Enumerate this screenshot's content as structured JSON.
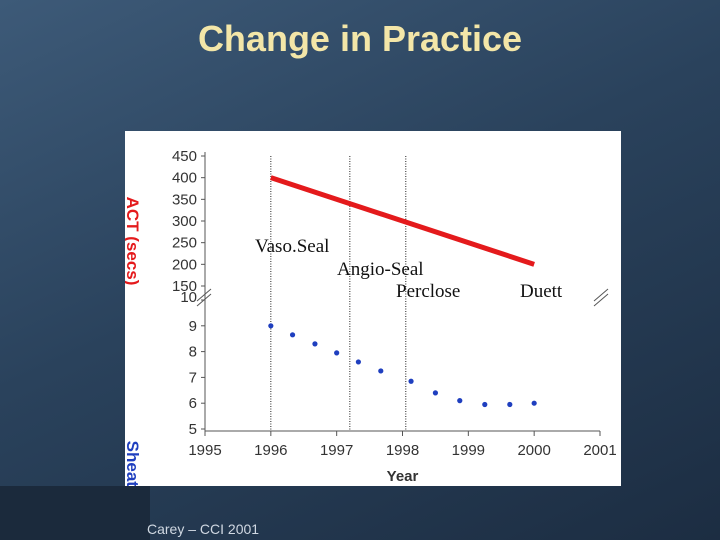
{
  "slide": {
    "title": "Change in Practice",
    "footer": "Carey – CCI 2001"
  },
  "chart_data": {
    "type": "line",
    "xlabel": "Year",
    "xlim": [
      1995,
      2001
    ],
    "x_ticks": [
      "1995",
      "1996",
      "1997",
      "1998",
      "1999",
      "2000",
      "2001"
    ],
    "series": [
      {
        "name": "ACT (secs)",
        "axis_label": "ACT (secs)",
        "style": "line",
        "color": "#e41a1c",
        "x": [
          1996,
          2000
        ],
        "y": [
          400,
          200
        ],
        "ylim": [
          150,
          450
        ],
        "y_ticks": [
          "450",
          "400",
          "350",
          "300",
          "250",
          "200",
          "150"
        ]
      },
      {
        "name": "Sheath",
        "axis_label": "Sheath",
        "style": "scatter",
        "color": "#1f3fbf",
        "x": [
          1996.0,
          1996.33,
          1996.67,
          1997.0,
          1997.33,
          1997.67,
          1998.13,
          1998.5,
          1998.87,
          1999.25,
          1999.63,
          2000.0
        ],
        "y": [
          9.0,
          8.65,
          8.3,
          7.95,
          7.6,
          7.25,
          6.85,
          6.4,
          6.1,
          5.95,
          5.95,
          6.0
        ],
        "ylim": [
          5,
          10
        ],
        "y_ticks": [
          "10",
          "9",
          "8",
          "7",
          "6",
          "5"
        ]
      }
    ],
    "annotations": [
      {
        "label": "Vaso.Seal",
        "year": 1996.0
      },
      {
        "label": "Angio-Seal",
        "year": 1997.2
      },
      {
        "label": "Perclose",
        "year": 1998.05
      }
    ],
    "extra_label": "Duett",
    "axis_break": true
  }
}
